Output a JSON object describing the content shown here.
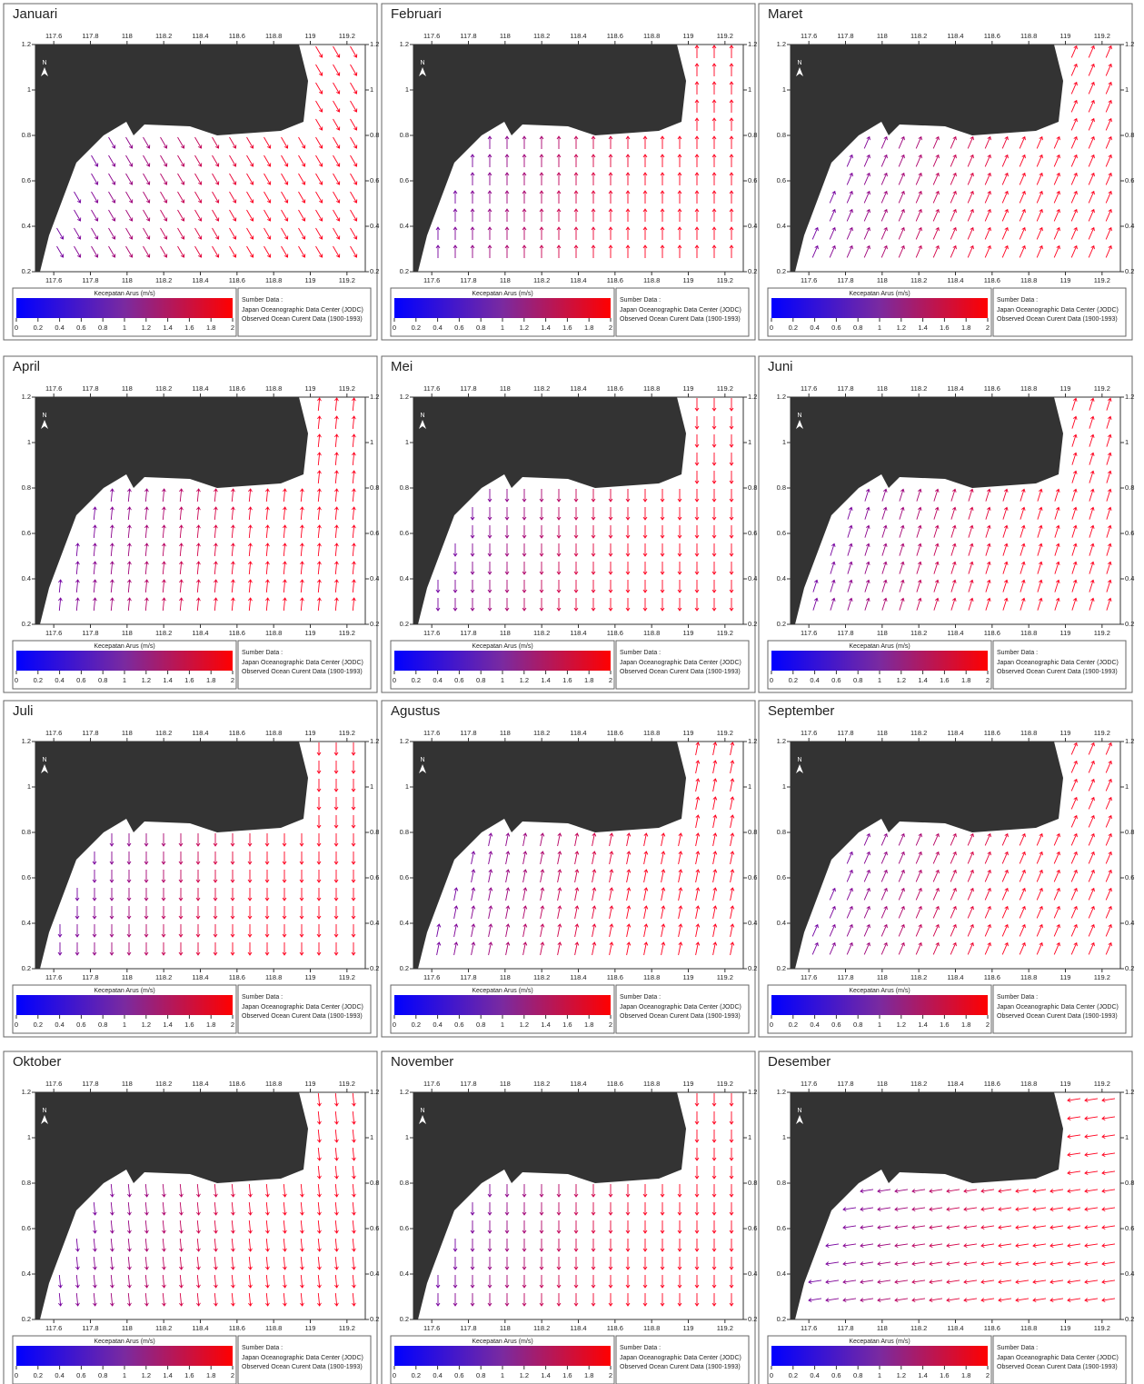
{
  "panels": [
    {
      "title": "Januari"
    },
    {
      "title": "Februari"
    },
    {
      "title": "Maret"
    },
    {
      "title": "April"
    },
    {
      "title": "Mei"
    },
    {
      "title": "Juni"
    },
    {
      "title": "Juli"
    },
    {
      "title": "Agustus"
    },
    {
      "title": "September"
    },
    {
      "title": "Oktober"
    },
    {
      "title": "November"
    },
    {
      "title": "Desember"
    }
  ],
  "lon_range": [
    117.5,
    119.3
  ],
  "lon_ticks": [
    117.6,
    117.8,
    118,
    118.2,
    118.4,
    118.6,
    118.8,
    119,
    119.2
  ],
  "lat_range": [
    0.2,
    1.2
  ],
  "lat_ticks": [
    0.2,
    0.4,
    0.6,
    0.8,
    1,
    1.2
  ],
  "north": "N",
  "legend": {
    "title": "Kecepatan Arus (m/s)",
    "ticks": [
      0,
      0.2,
      0.4,
      0.6,
      0.8,
      1,
      1.2,
      1.4,
      1.6,
      1.8,
      2
    ]
  },
  "source": {
    "title": "Sumber Data :",
    "lines": [
      "Japan Oceanographic Data Center (JODC)",
      "Observed Ocean Curent Data (1900-1993)"
    ]
  }
}
